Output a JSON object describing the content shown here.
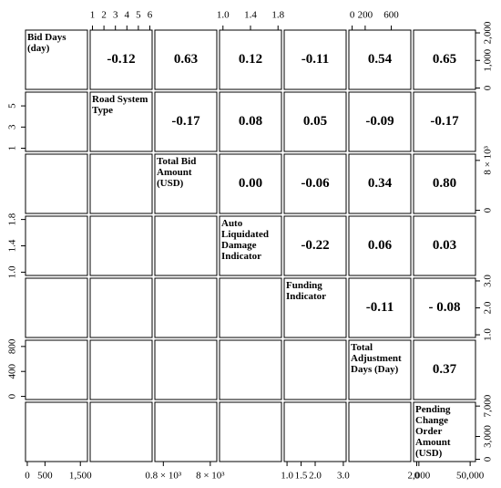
{
  "chart_data": {
    "type": "pairs",
    "variables": [
      "Bid Days (day)",
      "Road System Type",
      "Total Bid Amount (USD)",
      "Auto Liquidated Damage Indicator",
      "Funding Indicator",
      "Total Adjustment Days (Day)",
      "Pending Change Order Amount (USD)"
    ],
    "correlations": [
      [
        null,
        -0.12,
        0.63,
        0.12,
        -0.11,
        0.54,
        0.65
      ],
      [
        null,
        null,
        -0.17,
        0.08,
        0.05,
        -0.09,
        -0.17
      ],
      [
        null,
        null,
        null,
        0,
        -0.06,
        0.34,
        0.8
      ],
      [
        null,
        null,
        null,
        null,
        -0.22,
        0.06,
        0.03
      ],
      [
        null,
        null,
        null,
        null,
        null,
        -0.11,
        -0.08
      ],
      [
        null,
        null,
        null,
        null,
        null,
        null,
        0.37
      ],
      [
        null,
        null,
        null,
        null,
        null,
        null,
        null
      ]
    ],
    "correlation_labels": [
      [
        null,
        "-0.12",
        "0.63",
        "0.12",
        "-0.11",
        "0.54",
        "0.65"
      ],
      [
        null,
        null,
        "-0.17",
        "0.08",
        "0.05",
        "-0.09",
        "-0.17"
      ],
      [
        null,
        null,
        null,
        "0.00",
        "-0.06",
        "0.34",
        "0.80"
      ],
      [
        null,
        null,
        null,
        null,
        "-0.22",
        "0.06",
        "0.03"
      ],
      [
        null,
        null,
        null,
        null,
        null,
        "-0.11",
        "- 0.08"
      ],
      [
        null,
        null,
        null,
        null,
        null,
        null,
        "0.37"
      ],
      [
        null,
        null,
        null,
        null,
        null,
        null,
        null
      ]
    ],
    "axes": [
      {
        "side": "top",
        "panel": 1,
        "lim": [
          0.8,
          6.2
        ],
        "ticks": [
          1,
          2,
          3,
          4,
          5,
          6
        ]
      },
      {
        "side": "top",
        "panel": 3,
        "lim": [
          0.95,
          1.85
        ],
        "ticks": [
          {
            "value": 1,
            "label": "1.0"
          },
          1.4,
          1.8
        ]
      },
      {
        "side": "top",
        "panel": 5,
        "lim": [
          -50,
          900
        ],
        "ticks": [
          0,
          200,
          600
        ]
      },
      {
        "side": "right",
        "panel": 0,
        "lim": [
          -50,
          2100
        ],
        "ticks": [
          0,
          {
            "value": 1000,
            "label": "1,000"
          },
          {
            "value": 2000,
            "label": "2,000"
          }
        ]
      },
      {
        "side": "right",
        "panel": 2,
        "lim": [
          -500,
          9000
        ],
        "ticks": [
          0,
          {
            "value": 8000,
            "label": "8 × 10³"
          }
        ]
      },
      {
        "side": "right",
        "panel": 4,
        "lim": [
          0.9,
          3.1
        ],
        "ticks": [
          {
            "value": 1,
            "label": "1.0"
          },
          {
            "value": 2,
            "label": "2.0"
          },
          {
            "value": 3,
            "label": "3.0"
          }
        ]
      },
      {
        "side": "right",
        "panel": 6,
        "lim": [
          -300,
          7500
        ],
        "ticks": [
          0,
          {
            "value": 3000,
            "label": "3,000"
          },
          {
            "value": 7000,
            "label": "7,000"
          }
        ]
      },
      {
        "side": "left",
        "panel": 1,
        "lim": [
          0.7,
          6.3
        ],
        "ticks": [
          1,
          3,
          5
        ]
      },
      {
        "side": "left",
        "panel": 3,
        "lim": [
          0.95,
          1.85
        ],
        "ticks": [
          {
            "value": 1,
            "label": "1.0"
          },
          1.4,
          1.8
        ]
      },
      {
        "side": "left",
        "panel": 5,
        "lim": [
          -50,
          900
        ],
        "ticks": [
          0,
          400,
          800
        ]
      },
      {
        "side": "bottom",
        "panel": 0,
        "lim": [
          -50,
          1700
        ],
        "ticks": [
          0,
          500,
          {
            "value": 1500,
            "label": "1,500"
          }
        ]
      },
      {
        "side": "bottom",
        "panel": 2,
        "lim": [
          -500,
          9000
        ],
        "ticks": [
          {
            "value": 800,
            "label": "0.8 × 10³"
          },
          {
            "value": 8000,
            "label": "8 × 10³"
          }
        ]
      },
      {
        "side": "bottom",
        "panel": 4,
        "lim": [
          0.9,
          3.1
        ],
        "ticks": [
          {
            "value": 1,
            "label": "1.0"
          },
          {
            "value": 1.5,
            "label": "1.5"
          },
          {
            "value": 2,
            "label": "2.0"
          },
          {
            "value": 3,
            "label": "3.0"
          }
        ]
      },
      {
        "side": "bottom",
        "panel": 6,
        "lim": [
          -3000,
          55000
        ],
        "ticks": [
          0,
          {
            "value": 2000,
            "label": "2,000"
          },
          {
            "value": 50000,
            "label": "50,000"
          }
        ]
      }
    ]
  }
}
